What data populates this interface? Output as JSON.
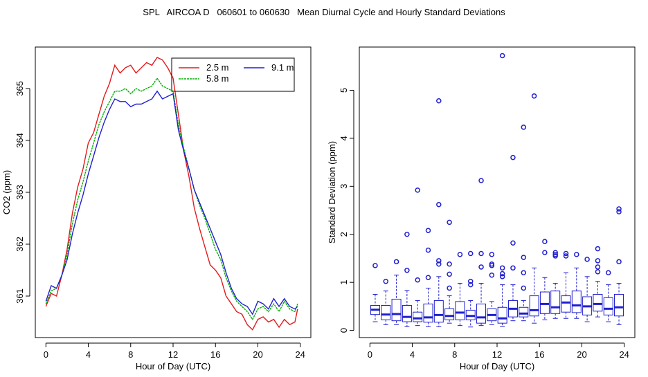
{
  "title": "SPL   AIRCOA D   060601 to 060630   Mean Diurnal Cycle and Hourly Standard Deviations",
  "chart_data": [
    {
      "type": "line",
      "xlabel": "Hour of Day (UTC)",
      "ylabel": "CO2 (ppm)",
      "xlim": [
        -1,
        25
      ],
      "ylim": [
        360.2,
        365.8
      ],
      "xticks": [
        0,
        4,
        8,
        12,
        16,
        20,
        24
      ],
      "yticks": [
        361,
        362,
        363,
        364,
        365
      ],
      "legend": {
        "position": "top-right",
        "entries": [
          {
            "label": "2.5 m",
            "color": "#e31a1c"
          },
          {
            "label": "5.8 m",
            "color": "#00b000"
          },
          {
            "label": "9.1 m",
            "color": "#1f1fd0"
          }
        ]
      },
      "series": [
        {
          "name": "2.5 m",
          "color": "#e31a1c",
          "x": [
            0,
            0.5,
            1,
            1.5,
            2,
            2.5,
            3,
            3.5,
            4,
            4.5,
            5,
            5.5,
            6,
            6.5,
            7,
            7.5,
            8,
            8.5,
            9,
            9.5,
            10,
            10.5,
            11,
            11.5,
            12,
            12.5,
            13,
            13.5,
            14,
            14.5,
            15,
            15.5,
            16,
            16.5,
            17,
            17.5,
            18,
            18.5,
            19,
            19.5,
            20,
            20.5,
            21,
            21.5,
            22,
            22.5,
            23,
            23.5,
            23.75
          ],
          "values": [
            360.8,
            361.05,
            361.0,
            361.4,
            361.9,
            362.6,
            363.1,
            363.45,
            363.95,
            364.15,
            364.5,
            364.85,
            365.1,
            365.45,
            365.3,
            365.4,
            365.45,
            365.3,
            365.4,
            365.5,
            365.45,
            365.6,
            365.55,
            365.4,
            365.2,
            364.5,
            363.8,
            363.3,
            362.7,
            362.3,
            361.95,
            361.6,
            361.5,
            361.35,
            361.0,
            360.85,
            360.7,
            360.65,
            360.45,
            360.35,
            360.55,
            360.6,
            360.5,
            360.55,
            360.4,
            360.55,
            360.45,
            360.5,
            360.75
          ]
        },
        {
          "name": "5.8 m",
          "color": "#00b000",
          "x": [
            0,
            0.5,
            1,
            1.5,
            2,
            2.5,
            3,
            3.5,
            4,
            4.5,
            5,
            5.5,
            6,
            6.5,
            7,
            7.5,
            8,
            8.5,
            9,
            9.5,
            10,
            10.5,
            11,
            11.5,
            12,
            12.5,
            13,
            13.5,
            14,
            14.5,
            15,
            15.5,
            16,
            16.5,
            17,
            17.5,
            18,
            18.5,
            19,
            19.5,
            20,
            20.5,
            21,
            21.5,
            22,
            22.5,
            23,
            23.5,
            23.75
          ],
          "values": [
            360.85,
            361.1,
            361.15,
            361.4,
            361.8,
            362.4,
            362.85,
            363.2,
            363.6,
            363.95,
            364.3,
            364.55,
            364.75,
            364.95,
            364.95,
            365.0,
            364.9,
            365.0,
            364.95,
            365.0,
            365.05,
            365.2,
            365.05,
            365.0,
            364.95,
            364.3,
            363.85,
            363.45,
            363.05,
            362.75,
            362.5,
            362.2,
            361.9,
            361.7,
            361.35,
            361.1,
            360.9,
            360.8,
            360.7,
            360.55,
            360.75,
            360.8,
            360.7,
            360.85,
            360.7,
            360.9,
            360.75,
            360.7,
            360.85
          ]
        },
        {
          "name": "9.1 m",
          "color": "#1f1fd0",
          "x": [
            0,
            0.5,
            1,
            1.5,
            2,
            2.5,
            3,
            3.5,
            4,
            4.5,
            5,
            5.5,
            6,
            6.5,
            7,
            7.5,
            8,
            8.5,
            9,
            9.5,
            10,
            10.5,
            11,
            11.5,
            12,
            12.5,
            13,
            13.5,
            14,
            14.5,
            15,
            15.5,
            16,
            16.5,
            17,
            17.5,
            18,
            18.5,
            19,
            19.5,
            20,
            20.5,
            21,
            21.5,
            22,
            22.5,
            23,
            23.5,
            23.75
          ],
          "values": [
            360.9,
            361.2,
            361.15,
            361.4,
            361.7,
            362.2,
            362.6,
            362.95,
            363.35,
            363.7,
            364.05,
            364.35,
            364.6,
            364.8,
            364.75,
            364.75,
            364.65,
            364.7,
            364.7,
            364.75,
            364.8,
            364.95,
            364.8,
            364.85,
            364.9,
            364.2,
            363.8,
            363.45,
            363.05,
            362.8,
            362.55,
            362.3,
            362.05,
            361.8,
            361.45,
            361.15,
            360.95,
            360.85,
            360.8,
            360.65,
            360.9,
            360.85,
            360.75,
            360.95,
            360.8,
            360.95,
            360.8,
            360.75,
            360.8
          ]
        }
      ]
    },
    {
      "type": "box",
      "xlabel": "Hour of Day (UTC)",
      "ylabel": "Standard Deviation (ppm)",
      "xlim": [
        -1,
        25
      ],
      "ylim": [
        -0.15,
        5.9
      ],
      "xticks": [
        0,
        4,
        8,
        12,
        16,
        20,
        24
      ],
      "yticks": [
        0,
        1,
        2,
        3,
        4,
        5
      ],
      "color": "#1f1fd0",
      "boxes": [
        {
          "x": 0.5,
          "low": 0.18,
          "q1": 0.33,
          "median": 0.43,
          "q3": 0.52,
          "high": 0.75,
          "outliers": [
            1.35
          ]
        },
        {
          "x": 1.5,
          "low": 0.12,
          "q1": 0.22,
          "median": 0.33,
          "q3": 0.52,
          "high": 0.82,
          "outliers": [
            1.02
          ]
        },
        {
          "x": 2.5,
          "low": 0.12,
          "q1": 0.2,
          "median": 0.34,
          "q3": 0.65,
          "high": 1.15,
          "outliers": [
            1.43
          ]
        },
        {
          "x": 3.5,
          "low": 0.08,
          "q1": 0.18,
          "median": 0.28,
          "q3": 0.52,
          "high": 0.83,
          "outliers": [
            1.25,
            2.0
          ]
        },
        {
          "x": 4.5,
          "low": 0.1,
          "q1": 0.18,
          "median": 0.25,
          "q3": 0.38,
          "high": 0.62,
          "outliers": [
            1.05,
            2.92
          ]
        },
        {
          "x": 5.5,
          "low": 0.08,
          "q1": 0.17,
          "median": 0.27,
          "q3": 0.55,
          "high": 0.88,
          "outliers": [
            1.1,
            1.67,
            2.08
          ]
        },
        {
          "x": 6.5,
          "low": 0.08,
          "q1": 0.17,
          "median": 0.32,
          "q3": 0.62,
          "high": 1.12,
          "outliers": [
            1.38,
            1.45,
            2.62,
            4.78
          ]
        },
        {
          "x": 7.5,
          "low": 0.15,
          "q1": 0.22,
          "median": 0.3,
          "q3": 0.45,
          "high": 0.72,
          "outliers": [
            0.88,
            1.17,
            1.38,
            2.25
          ]
        },
        {
          "x": 8.5,
          "low": 0.1,
          "q1": 0.22,
          "median": 0.37,
          "q3": 0.6,
          "high": 0.98,
          "outliers": [
            1.58
          ]
        },
        {
          "x": 9.5,
          "low": 0.07,
          "q1": 0.22,
          "median": 0.3,
          "q3": 0.42,
          "high": 0.62,
          "outliers": [
            0.95,
            1.02,
            1.6
          ]
        },
        {
          "x": 10.5,
          "low": 0.1,
          "q1": 0.15,
          "median": 0.27,
          "q3": 0.55,
          "high": 0.98,
          "outliers": [
            1.32,
            1.6,
            3.12
          ]
        },
        {
          "x": 11.5,
          "low": 0.12,
          "q1": 0.2,
          "median": 0.32,
          "q3": 0.45,
          "high": 0.6,
          "outliers": [
            1.15,
            1.35,
            1.38,
            1.58
          ]
        },
        {
          "x": 12.5,
          "low": 0.08,
          "q1": 0.15,
          "median": 0.25,
          "q3": 0.48,
          "high": 0.95,
          "outliers": [
            1.12,
            1.18,
            1.3,
            5.72
          ]
        },
        {
          "x": 13.5,
          "low": 0.2,
          "q1": 0.28,
          "median": 0.45,
          "q3": 0.62,
          "high": 0.95,
          "outliers": [
            1.3,
            1.82,
            3.6
          ]
        },
        {
          "x": 14.5,
          "low": 0.2,
          "q1": 0.28,
          "median": 0.35,
          "q3": 0.48,
          "high": 0.62,
          "outliers": [
            0.88,
            1.2,
            1.52,
            4.23
          ]
        },
        {
          "x": 15.5,
          "low": 0.15,
          "q1": 0.3,
          "median": 0.42,
          "q3": 0.72,
          "high": 1.3,
          "outliers": [
            4.88
          ]
        },
        {
          "x": 16.5,
          "low": 0.22,
          "q1": 0.35,
          "median": 0.55,
          "q3": 0.8,
          "high": 1.1,
          "outliers": [
            1.62,
            1.85
          ]
        },
        {
          "x": 17.5,
          "low": 0.25,
          "q1": 0.35,
          "median": 0.48,
          "q3": 0.82,
          "high": 0.98,
          "outliers": [
            1.55,
            1.58,
            1.62
          ]
        },
        {
          "x": 18.5,
          "low": 0.25,
          "q1": 0.38,
          "median": 0.58,
          "q3": 0.72,
          "high": 1.2,
          "outliers": [
            1.55,
            1.6
          ]
        },
        {
          "x": 19.5,
          "low": 0.25,
          "q1": 0.37,
          "median": 0.52,
          "q3": 0.82,
          "high": 1.3,
          "outliers": [
            1.58
          ]
        },
        {
          "x": 20.5,
          "low": 0.18,
          "q1": 0.32,
          "median": 0.5,
          "q3": 0.7,
          "high": 1.12,
          "outliers": [
            1.48
          ]
        },
        {
          "x": 21.5,
          "low": 0.28,
          "q1": 0.4,
          "median": 0.55,
          "q3": 0.75,
          "high": 1.02,
          "outliers": [
            1.22,
            1.32,
            1.45,
            1.7
          ]
        },
        {
          "x": 22.5,
          "low": 0.18,
          "q1": 0.32,
          "median": 0.45,
          "q3": 0.68,
          "high": 0.95,
          "outliers": [
            1.2
          ]
        },
        {
          "x": 23.5,
          "low": 0.12,
          "q1": 0.3,
          "median": 0.48,
          "q3": 0.75,
          "high": 0.98,
          "outliers": [
            1.43,
            2.47,
            2.53
          ]
        }
      ]
    }
  ]
}
